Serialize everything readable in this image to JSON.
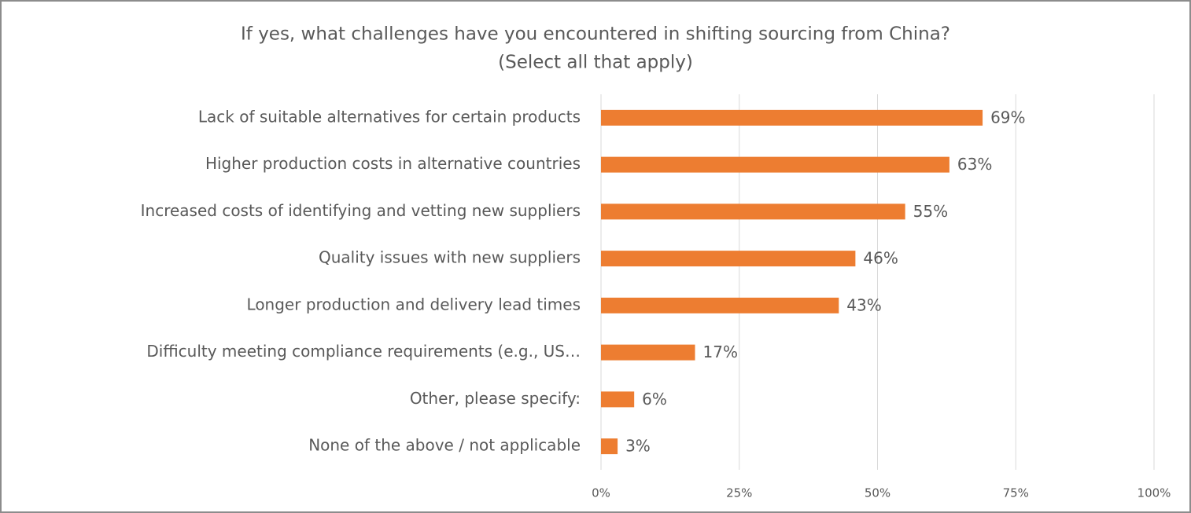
{
  "chart_data": {
    "type": "bar",
    "orientation": "horizontal",
    "title": "If yes, what challenges have you encountered in shifting sourcing from China?",
    "subtitle": "(Select all that apply)",
    "categories": [
      "Lack of suitable alternatives for certain products",
      "Higher production costs in alternative countries",
      "Increased costs of identifying and vetting new suppliers",
      "Quality issues with new suppliers",
      "Longer production and delivery lead times",
      "Difficulty meeting compliance requirements (e.g., US…",
      "Other, please specify:",
      "None of the above / not applicable"
    ],
    "values": [
      69,
      63,
      55,
      46,
      43,
      17,
      6,
      3
    ],
    "value_labels": [
      "69%",
      "63%",
      "55%",
      "46%",
      "43%",
      "17%",
      "6%",
      "3%"
    ],
    "color": "#ed7d31",
    "xlim": [
      0,
      100
    ],
    "xticks": [
      {
        "value": 0,
        "label": "0%"
      },
      {
        "value": 25,
        "label": "25%"
      },
      {
        "value": 50,
        "label": "50%"
      },
      {
        "value": 75,
        "label": "75%"
      },
      {
        "value": 100,
        "label": "100%"
      }
    ],
    "grid": true
  }
}
